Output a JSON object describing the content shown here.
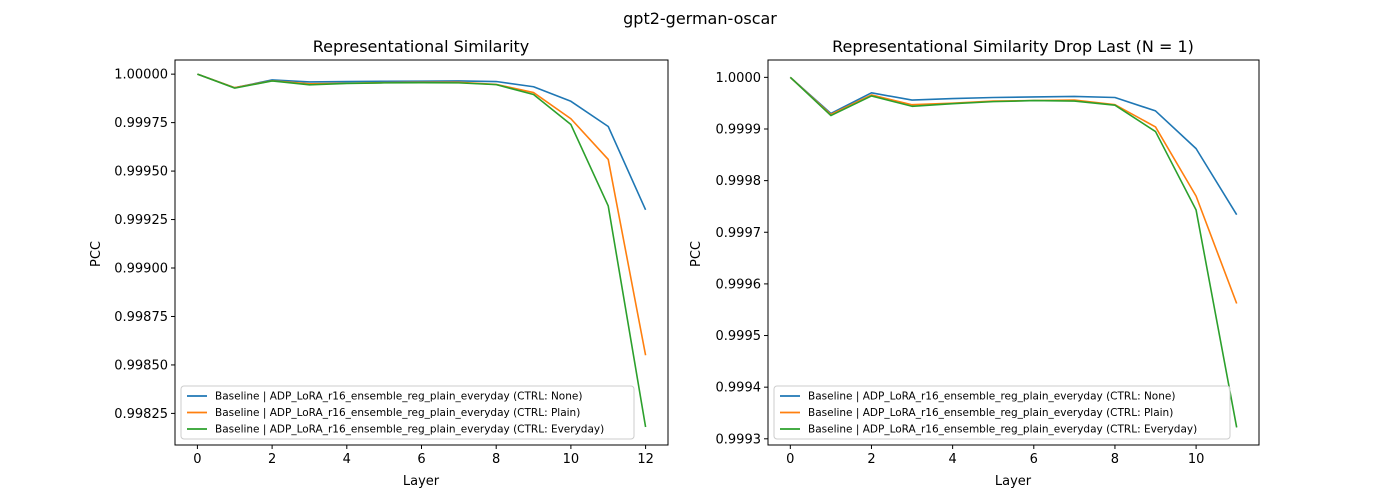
{
  "figure": {
    "suptitle": "gpt2-german-oscar"
  },
  "colors": {
    "series": [
      "#1f77b4",
      "#ff7f0e",
      "#2ca02c"
    ],
    "axis": "#000000"
  },
  "chart_data": [
    {
      "type": "line",
      "title": "Representational Similarity",
      "xlabel": "Layer",
      "ylabel": "PCC",
      "xlim": [
        -0.6,
        12.6
      ],
      "ylim": [
        0.998087,
        1.000073
      ],
      "xticks": [
        0,
        2,
        4,
        6,
        8,
        10,
        12
      ],
      "yticks": [
        0.99825,
        0.9985,
        0.99875,
        0.999,
        0.99925,
        0.9995,
        0.99975,
        1.0
      ],
      "ytick_labels": [
        "0.99825",
        "0.99850",
        "0.99875",
        "0.99900",
        "0.99925",
        "0.99950",
        "0.99975",
        "1.00000"
      ],
      "legend_position": "lower left",
      "x": [
        0,
        1,
        2,
        3,
        4,
        5,
        6,
        7,
        8,
        9,
        10,
        11,
        12
      ],
      "series": [
        {
          "name": "Baseline | ADP_LoRA_r16_ensemble_reg_plain_everyday (CTRL: None)",
          "values": [
            1.0,
            0.99993,
            0.99997,
            0.99996,
            0.999962,
            0.999963,
            0.999964,
            0.999965,
            0.999962,
            0.999935,
            0.99986,
            0.99973,
            0.9993
          ]
        },
        {
          "name": "Baseline | ADP_LoRA_r16_ensemble_reg_plain_everyday (CTRL: Plain)",
          "values": [
            1.0,
            0.99993,
            0.999966,
            0.99995,
            0.999953,
            0.999956,
            0.999958,
            0.999958,
            0.999947,
            0.999905,
            0.99977,
            0.99956,
            0.99855
          ]
        },
        {
          "name": "Baseline | ADP_LoRA_r16_ensemble_reg_plain_everyday (CTRL: Everyday)",
          "values": [
            1.0,
            0.999928,
            0.999965,
            0.999945,
            0.999952,
            0.999955,
            0.999956,
            0.999955,
            0.999946,
            0.999895,
            0.99974,
            0.99932,
            0.99818
          ]
        }
      ]
    },
    {
      "type": "line",
      "title": "Representational Similarity Drop Last (N = 1)",
      "xlabel": "Layer",
      "ylabel": "PCC",
      "xlim": [
        -0.55,
        11.55
      ],
      "ylim": [
        0.999288,
        1.0000336
      ],
      "xticks": [
        0,
        2,
        4,
        6,
        8,
        10
      ],
      "yticks": [
        0.9993,
        0.9994,
        0.9995,
        0.9996,
        0.9997,
        0.9998,
        0.9999,
        1.0
      ],
      "ytick_labels": [
        "0.9993",
        "0.9994",
        "0.9995",
        "0.9996",
        "0.9997",
        "0.9998",
        "0.9999",
        "1.0000"
      ],
      "legend_position": "lower left",
      "x": [
        0,
        1,
        2,
        3,
        4,
        5,
        6,
        7,
        8,
        9,
        10,
        11
      ],
      "series": [
        {
          "name": "Baseline | ADP_LoRA_r16_ensemble_reg_plain_everyday (CTRL: None)",
          "values": [
            1.0,
            0.99993,
            0.99997,
            0.999956,
            0.999959,
            0.999961,
            0.999962,
            0.999963,
            0.999961,
            0.999935,
            0.999862,
            0.999734
          ]
        },
        {
          "name": "Baseline | ADP_LoRA_r16_ensemble_reg_plain_everyday (CTRL: Plain)",
          "values": [
            1.0,
            0.999928,
            0.999966,
            0.999947,
            0.99995,
            0.999954,
            0.999955,
            0.999956,
            0.999947,
            0.999904,
            0.99977,
            0.999562
          ]
        },
        {
          "name": "Baseline | ADP_LoRA_r16_ensemble_reg_plain_everyday (CTRL: Everyday)",
          "values": [
            1.0,
            0.999926,
            0.999964,
            0.999944,
            0.999949,
            0.999953,
            0.999955,
            0.999954,
            0.999946,
            0.999895,
            0.999743,
            0.999322
          ]
        }
      ]
    }
  ]
}
